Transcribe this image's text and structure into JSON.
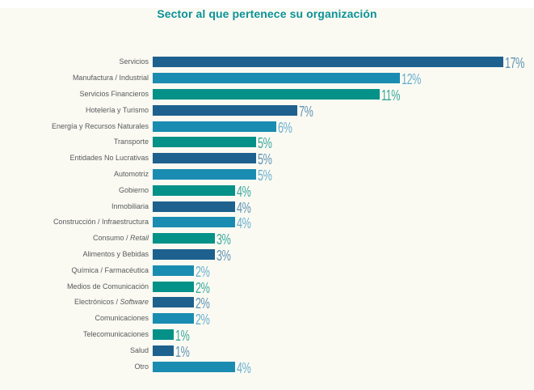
{
  "page": {
    "background": "#fafaf3",
    "top_strip_color": "#ffffff"
  },
  "title": "Sector al que pertenece su organización",
  "chart_data": {
    "type": "bar",
    "orientation": "horizontal",
    "title": "Sector al que pertenece su organización",
    "xlabel": "",
    "ylabel": "",
    "unit": "%",
    "xlim": [
      0,
      17
    ],
    "grid": false,
    "legend": "none",
    "title_color": "#0c9296",
    "category_label_color": "#58595b",
    "categories": [
      "Servicios",
      "Manufactura / Industrial",
      "Servicios Financieros",
      "Hotelería y Turismo",
      "Energía y Recursos Naturales",
      "Transporte",
      "Entidades No Lucrativas",
      "Automotriz",
      "Gobierno",
      "Inmobiliaria",
      "Construcción / Infraestructura",
      "Consumo / Retail",
      "Alimentos y Bebidas",
      "Química / Farmacéutica",
      "Medios de Comunicación",
      "Electrónicos / Software",
      "Comunicaciones",
      "Telecomunicaciones",
      "Salud",
      "Otro"
    ],
    "values": [
      17,
      12,
      11,
      7,
      6,
      5,
      5,
      5,
      4,
      4,
      4,
      3,
      3,
      2,
      2,
      2,
      2,
      1,
      1,
      4
    ],
    "palette": {
      "dark_blue": {
        "bar": "#1e618e",
        "value_label": "#5f93b4"
      },
      "medium_blue": {
        "bar": "#1b8cb1",
        "value_label": "#69afce"
      },
      "teal": {
        "bar": "#049188",
        "value_label": "#39a89c"
      }
    },
    "bars": [
      {
        "label": "Servicios",
        "italic": "",
        "value": 17,
        "display": "17%",
        "color": "dark_blue"
      },
      {
        "label": "Manufactura / Industrial",
        "italic": "",
        "value": 12,
        "display": "12%",
        "color": "medium_blue"
      },
      {
        "label": "Servicios Financieros",
        "italic": "",
        "value": 11,
        "display": "11%",
        "color": "teal"
      },
      {
        "label": "Hotelería y Turismo",
        "italic": "",
        "value": 7,
        "display": "7%",
        "color": "dark_blue"
      },
      {
        "label": "Energía y Recursos Naturales",
        "italic": "",
        "value": 6,
        "display": "6%",
        "color": "medium_blue"
      },
      {
        "label": "Transporte",
        "italic": "",
        "value": 5,
        "display": "5%",
        "color": "teal"
      },
      {
        "label": "Entidades No Lucrativas",
        "italic": "",
        "value": 5,
        "display": "5%",
        "color": "dark_blue"
      },
      {
        "label": "Automotriz",
        "italic": "",
        "value": 5,
        "display": "5%",
        "color": "medium_blue"
      },
      {
        "label": "Gobierno",
        "italic": "",
        "value": 4,
        "display": "4%",
        "color": "teal"
      },
      {
        "label": "Inmobiliaria",
        "italic": "",
        "value": 4,
        "display": "4%",
        "color": "dark_blue"
      },
      {
        "label": "Construcción / Infraestructura",
        "italic": "",
        "value": 4,
        "display": "4%",
        "color": "medium_blue"
      },
      {
        "label": "Consumo / ",
        "italic": "Retail",
        "value": 3,
        "display": "3%",
        "color": "teal"
      },
      {
        "label": "Alimentos y Bebidas",
        "italic": "",
        "value": 3,
        "display": "3%",
        "color": "dark_blue"
      },
      {
        "label": "Química / Farmacéutica",
        "italic": "",
        "value": 2,
        "display": "2%",
        "color": "medium_blue"
      },
      {
        "label": "Medios de Comunicación",
        "italic": "",
        "value": 2,
        "display": "2%",
        "color": "teal"
      },
      {
        "label": "Electrónicos / ",
        "italic": "Software",
        "value": 2,
        "display": "2%",
        "color": "dark_blue"
      },
      {
        "label": "Comunicaciones",
        "italic": "",
        "value": 2,
        "display": "2%",
        "color": "medium_blue"
      },
      {
        "label": "Telecomunicaciones",
        "italic": "",
        "value": 1,
        "display": "1%",
        "color": "teal"
      },
      {
        "label": "Salud",
        "italic": "",
        "value": 1,
        "display": "1%",
        "color": "dark_blue"
      },
      {
        "label": "Otro",
        "italic": "",
        "value": 4,
        "display": "4%",
        "color": "medium_blue"
      }
    ]
  }
}
